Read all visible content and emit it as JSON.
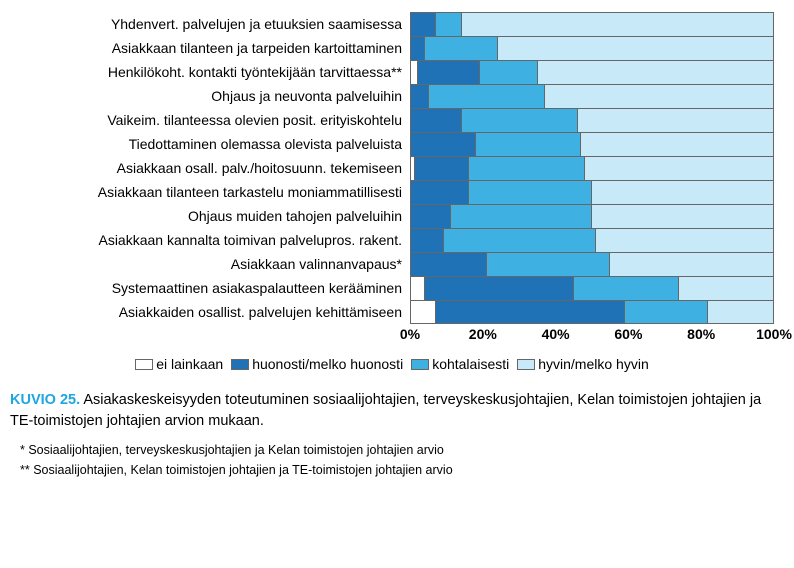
{
  "chart": {
    "type": "stacked-bar-horizontal",
    "xlim": [
      0,
      100
    ],
    "xtick_step": 20,
    "xtick_suffix": "%",
    "background_color": "#ffffff",
    "grid_color": "#bfbfbf",
    "border_color": "#666666",
    "label_fontsize": 14,
    "tick_fontsize": 14,
    "tick_fontweight": "bold",
    "categories": [
      "Yhdenvert. palvelujen ja etuuksien saamisessa",
      "Asiakkaan tilanteen ja tarpeiden kartoittaminen",
      "Henkilökoht. kontakti työntekijään tarvittaessa**",
      "Ohjaus ja neuvonta palveluihin",
      "Vaikeim. tilanteessa olevien posit. erityiskohtelu",
      "Tiedottaminen olemassa olevista palveluista",
      "Asiakkaan osall. palv./hoitosuunn. tekemiseen",
      "Asiakkaan tilanteen tarkastelu moniammatillisesti",
      "Ohjaus muiden tahojen palveluihin",
      "Asiakkaan kannalta toimivan palvelupros. rakent.",
      "Asiakkaan valinnanvapaus*",
      "Systemaattinen asiakaspalautteen kerääminen",
      "Asiakkaiden osallist. palvelujen kehittämiseen"
    ],
    "series": [
      {
        "name": "ei lainkaan",
        "color": "#ffffff"
      },
      {
        "name": "huonosti/melko huonosti",
        "color": "#1f72b5"
      },
      {
        "name": "kohtalaisesti",
        "color": "#3eb1e2"
      },
      {
        "name": "hyvin/melko hyvin",
        "color": "#c8e9f8"
      }
    ],
    "values": [
      [
        0,
        7,
        7,
        86
      ],
      [
        0,
        4,
        20,
        76
      ],
      [
        2,
        17,
        16,
        65
      ],
      [
        0,
        5,
        32,
        63
      ],
      [
        0,
        14,
        32,
        54
      ],
      [
        0,
        18,
        29,
        53
      ],
      [
        1,
        15,
        32,
        52
      ],
      [
        0,
        16,
        34,
        50
      ],
      [
        0,
        11,
        39,
        50
      ],
      [
        0,
        9,
        42,
        49
      ],
      [
        0,
        21,
        34,
        45
      ],
      [
        4,
        41,
        29,
        26
      ],
      [
        7,
        52,
        23,
        18
      ]
    ]
  },
  "legend": {
    "items": [
      {
        "label": "ei lainkaan",
        "swatch": "#ffffff"
      },
      {
        "label": "huonosti/melko huonosti",
        "swatch": "#1f72b5"
      },
      {
        "label": "kohtalaisesti",
        "swatch": "#3eb1e2"
      },
      {
        "label": "hyvin/melko hyvin",
        "swatch": "#c8e9f8"
      }
    ]
  },
  "caption": {
    "label": "KUVIO 25.",
    "text": "Asiakaskeskeisyyden toteutuminen sosiaalijohtajien, terveyskeskusjohtajien, Kelan toimistojen johtajien ja TE-toimistojen johtajien arvion mukaan."
  },
  "footnotes": [
    "* Sosiaalijohtajien, terveyskeskusjohtajien ja Kelan toimistojen johtajien arvio",
    "** Sosiaalijohtajien, Kelan toimistojen johtajien ja TE-toimistojen johtajien arvio"
  ]
}
